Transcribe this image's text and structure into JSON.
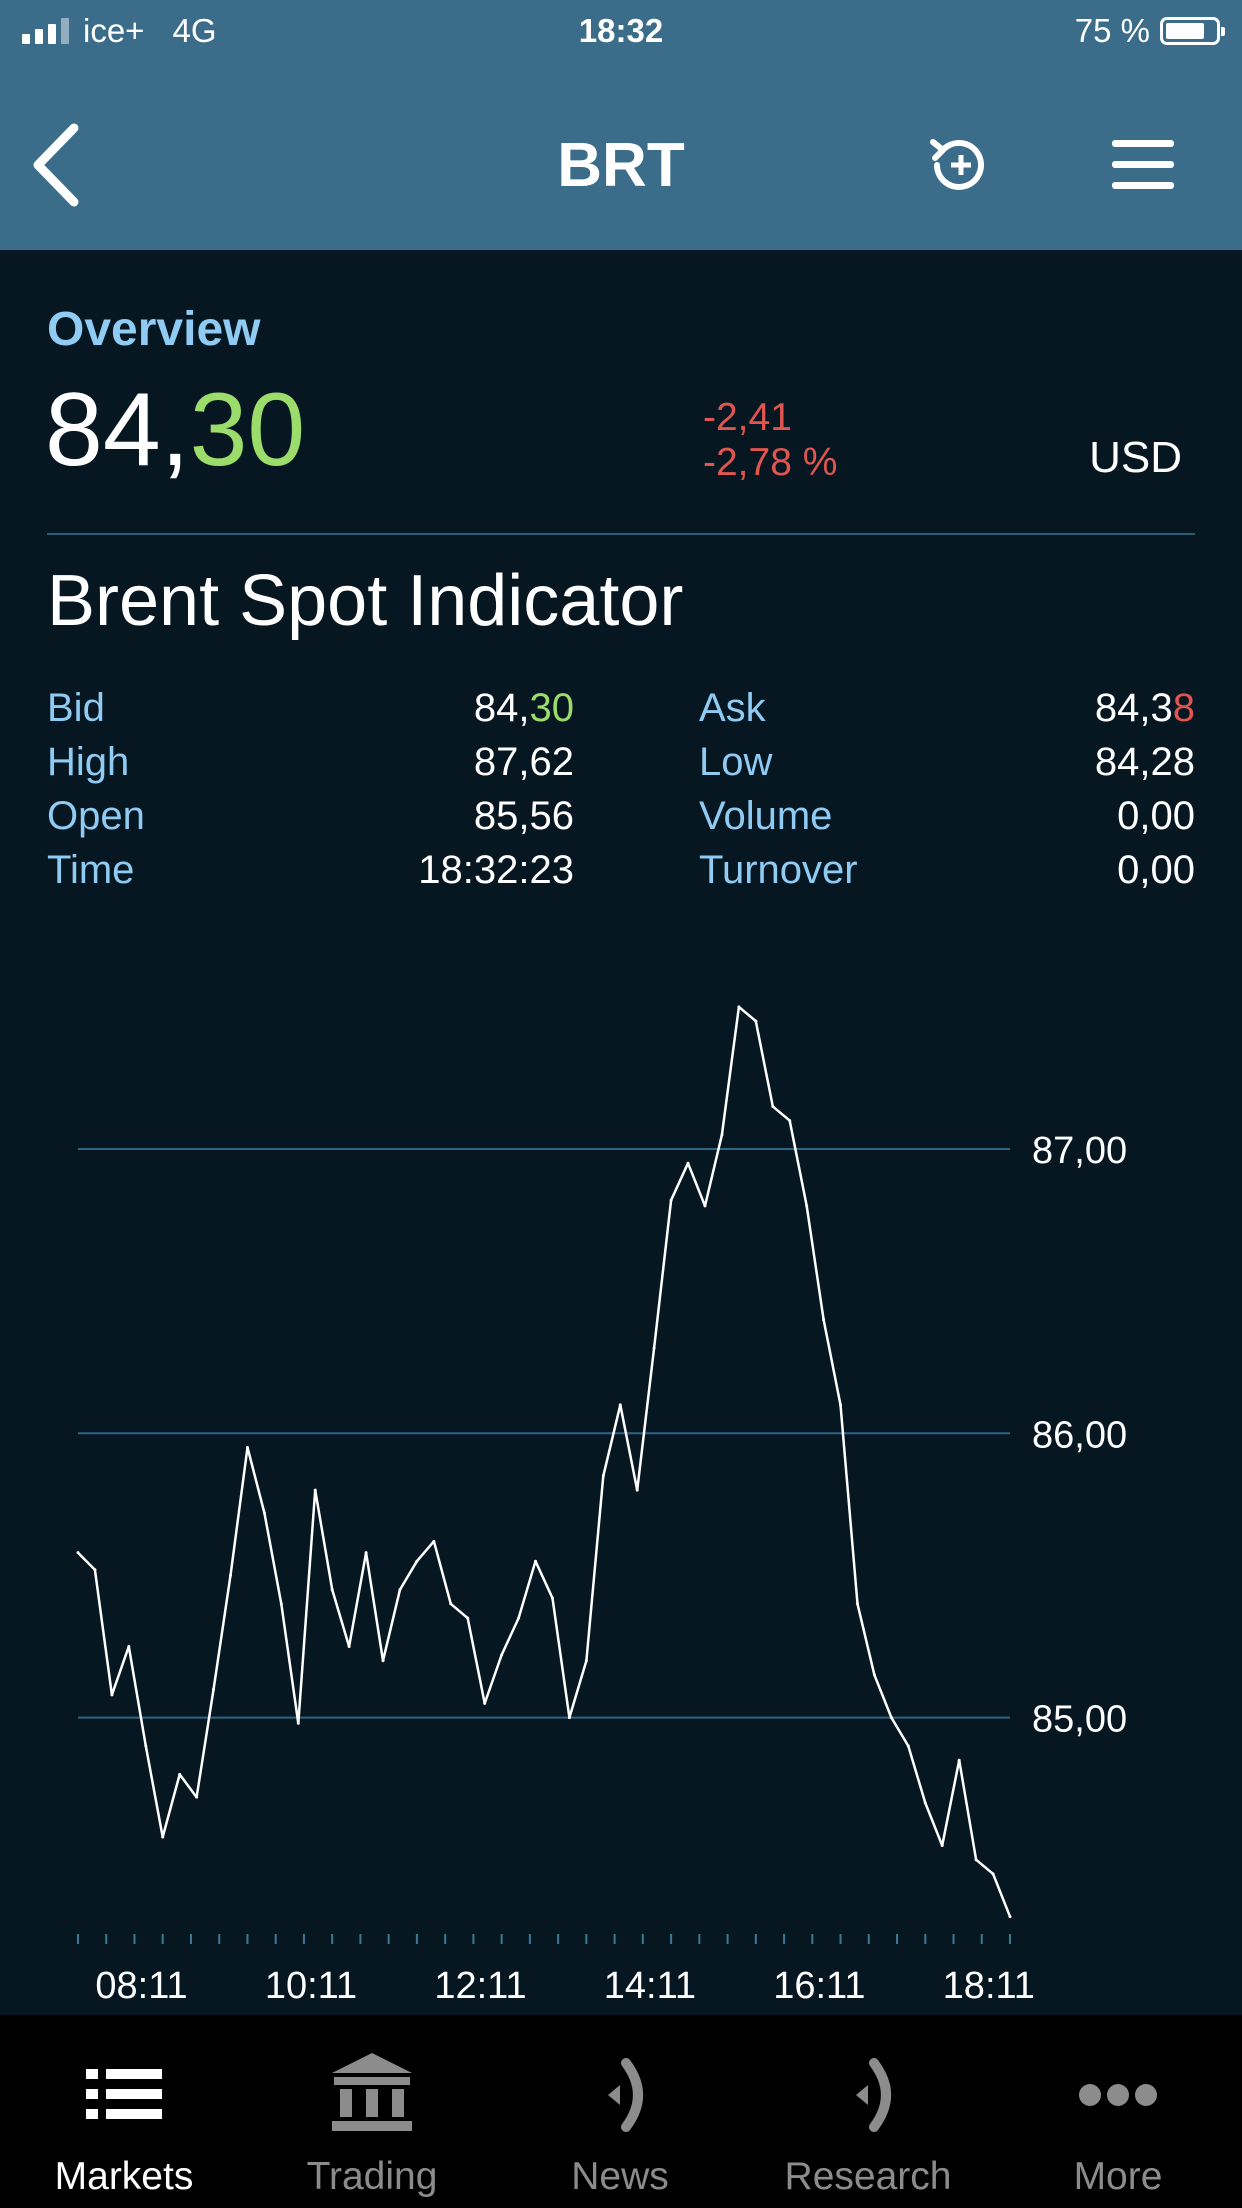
{
  "status_bar": {
    "carrier": "ice+",
    "network": "4G",
    "time": "18:32",
    "battery": "75 %"
  },
  "header": {
    "title": "BRT"
  },
  "overview": {
    "label": "Overview",
    "price_int": "84,",
    "price_dec": "30",
    "change": "-2,41",
    "change_pct": "-2,78 %",
    "currency": "USD",
    "instrument_name": "Brent Spot Indicator"
  },
  "stats": {
    "bid_label": "Bid",
    "bid_int": "84,",
    "bid_dec": "30",
    "ask_label": "Ask",
    "ask_int": "84,3",
    "ask_dec": "8",
    "high_label": "High",
    "high": "87,62",
    "low_label": "Low",
    "low": "84,28",
    "open_label": "Open",
    "open": "85,56",
    "volume_label": "Volume",
    "volume": "0,00",
    "time_label": "Time",
    "time": "18:32:23",
    "turnover_label": "Turnover",
    "turnover": "0,00"
  },
  "chart_data": {
    "type": "line",
    "title": "",
    "xlabel": "",
    "ylabel": "",
    "x_ticks": [
      "08:11",
      "10:11",
      "12:11",
      "14:11",
      "16:11",
      "18:11"
    ],
    "y_ticks": [
      "85,00",
      "86,00",
      "87,00"
    ],
    "y_tick_values": [
      85,
      86,
      87
    ],
    "ylim": [
      84.2,
      87.7
    ],
    "grid": true,
    "color": "#ffffff",
    "series": [
      {
        "x": [
          "07:26",
          "07:38",
          "07:50",
          "08:02",
          "08:14",
          "08:26",
          "08:38",
          "08:50",
          "09:02",
          "09:14",
          "09:26",
          "09:38",
          "09:50",
          "10:02",
          "10:14",
          "10:26",
          "10:38",
          "10:50",
          "11:02",
          "11:14",
          "11:26",
          "11:38",
          "11:50",
          "12:02",
          "12:14",
          "12:26",
          "12:38",
          "12:50",
          "13:02",
          "13:14",
          "13:26",
          "13:38",
          "13:50",
          "14:02",
          "14:14",
          "14:26",
          "14:38",
          "14:50",
          "15:02",
          "15:14",
          "15:26",
          "15:38",
          "15:50",
          "16:02",
          "16:14",
          "16:26",
          "16:38",
          "16:50",
          "17:02",
          "17:14",
          "17:26",
          "17:38",
          "17:50",
          "18:02",
          "18:14",
          "18:26"
        ],
        "values": [
          85.58,
          85.52,
          85.08,
          85.25,
          84.9,
          84.58,
          84.8,
          84.72,
          85.1,
          85.5,
          85.95,
          85.72,
          85.4,
          84.98,
          85.8,
          85.45,
          85.25,
          85.58,
          85.2,
          85.45,
          85.55,
          85.62,
          85.4,
          85.35,
          85.05,
          85.22,
          85.35,
          85.55,
          85.42,
          85.0,
          85.2,
          85.85,
          86.1,
          85.8,
          86.3,
          86.82,
          86.95,
          86.8,
          87.05,
          87.5,
          87.45,
          87.15,
          87.1,
          86.8,
          86.4,
          86.1,
          85.4,
          85.15,
          85.0,
          84.9,
          84.7,
          84.55,
          84.85,
          84.5,
          84.45,
          84.3
        ]
      }
    ]
  },
  "tabs": [
    {
      "label": "Markets",
      "icon": "list-icon"
    },
    {
      "label": "Trading",
      "icon": "bank-icon"
    },
    {
      "label": "News",
      "icon": "broadcast-icon"
    },
    {
      "label": "Research",
      "icon": "broadcast-icon"
    },
    {
      "label": "More",
      "icon": "more-icon"
    }
  ]
}
